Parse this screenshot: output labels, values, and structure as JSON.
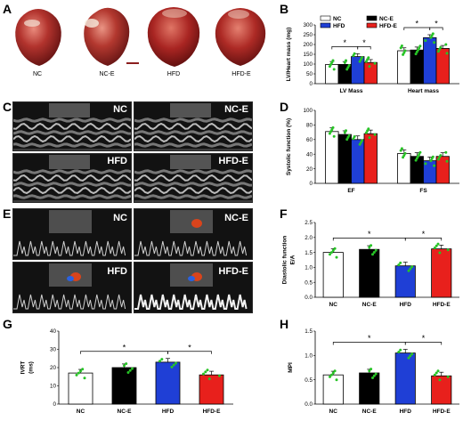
{
  "panels": {
    "A": "A",
    "B": "B",
    "C": "C",
    "D": "D",
    "E": "E",
    "F": "F",
    "G": "G",
    "H": "H"
  },
  "photos": [
    {
      "label": "NC"
    },
    {
      "label": "NC-E"
    },
    {
      "label": "HFD"
    },
    {
      "label": "HFD-E"
    }
  ],
  "echo_c": [
    {
      "label": "NC"
    },
    {
      "label": "NC-E"
    },
    {
      "label": "HFD"
    },
    {
      "label": "HFD-E"
    }
  ],
  "echo_e": [
    {
      "label": "NC"
    },
    {
      "label": "NC-E"
    },
    {
      "label": "HFD"
    },
    {
      "label": "HFD-E"
    }
  ],
  "colors": {
    "NC": "#ffffff",
    "NC-E": "#000000",
    "HFD": "#1f3fd6",
    "HFD-E": "#e8201c",
    "dots": "#27c426"
  },
  "chart_data": [
    {
      "id": "B",
      "type": "bar",
      "ylabel": "LV/Heart mass (mg)",
      "ylim": [
        0,
        300
      ],
      "yticks": [
        0,
        50,
        100,
        150,
        200,
        250,
        300
      ],
      "categories": [
        "LV Mass",
        "Heart mass"
      ],
      "legend": [
        "NC",
        "NC-E",
        "HFD",
        "HFD-E"
      ],
      "series": [
        {
          "name": "NC",
          "values": [
            98,
            168
          ]
        },
        {
          "name": "NC-E",
          "values": [
            98,
            172
          ]
        },
        {
          "name": "HFD",
          "values": [
            138,
            235
          ]
        },
        {
          "name": "HFD-E",
          "values": [
            108,
            180
          ]
        }
      ],
      "significance": [
        {
          "group": 0,
          "from": 0,
          "to": 2,
          "level": 1,
          "mark": "*"
        },
        {
          "group": 0,
          "from": 2,
          "to": 3,
          "level": 1,
          "mark": "*"
        },
        {
          "group": 1,
          "from": 0,
          "to": 2,
          "level": 1,
          "mark": "*"
        },
        {
          "group": 1,
          "from": 2,
          "to": 3,
          "level": 1,
          "mark": "*"
        }
      ]
    },
    {
      "id": "D",
      "type": "bar",
      "ylabel": "Systolic function (%)",
      "ylim": [
        0,
        100
      ],
      "yticks": [
        0,
        20,
        40,
        60,
        80,
        100
      ],
      "categories": [
        "EF",
        "FS"
      ],
      "series": [
        {
          "name": "NC",
          "values": [
            71,
            41
          ]
        },
        {
          "name": "NC-E",
          "values": [
            67,
            37
          ]
        },
        {
          "name": "HFD",
          "values": [
            60,
            31
          ]
        },
        {
          "name": "HFD-E",
          "values": [
            68,
            37
          ]
        }
      ],
      "significance": []
    },
    {
      "id": "F",
      "type": "bar",
      "ylabel": "Diastolic function\nE/A",
      "ylim": [
        0,
        2.5
      ],
      "yticks": [
        0.0,
        0.5,
        1.0,
        1.5,
        2.0,
        2.5
      ],
      "categories": [
        "NC",
        "NC-E",
        "HFD",
        "HFD-E"
      ],
      "values": [
        1.5,
        1.6,
        1.05,
        1.62
      ],
      "significance": [
        {
          "from": 0,
          "to": 2,
          "mark": "*"
        },
        {
          "from": 2,
          "to": 3,
          "mark": "*"
        }
      ]
    },
    {
      "id": "G",
      "type": "bar",
      "ylabel": "IVRT\n(ms)",
      "ylim": [
        0,
        40
      ],
      "yticks": [
        0,
        10,
        20,
        30,
        40
      ],
      "categories": [
        "NC",
        "NC-E",
        "HFD",
        "HFD-E"
      ],
      "values": [
        17,
        20,
        23,
        16
      ],
      "significance": [
        {
          "from": 0,
          "to": 2,
          "mark": "*"
        },
        {
          "from": 2,
          "to": 3,
          "mark": "*"
        }
      ]
    },
    {
      "id": "H",
      "type": "bar",
      "ylabel": "MPI",
      "ylim": [
        0,
        1.5
      ],
      "yticks": [
        0.0,
        0.5,
        1.0,
        1.5
      ],
      "categories": [
        "NC",
        "NC-E",
        "HFD",
        "HFD-E"
      ],
      "values": [
        0.6,
        0.64,
        1.05,
        0.58
      ],
      "significance": [
        {
          "from": 0,
          "to": 2,
          "mark": "*"
        },
        {
          "from": 2,
          "to": 3,
          "mark": "*"
        }
      ]
    }
  ]
}
